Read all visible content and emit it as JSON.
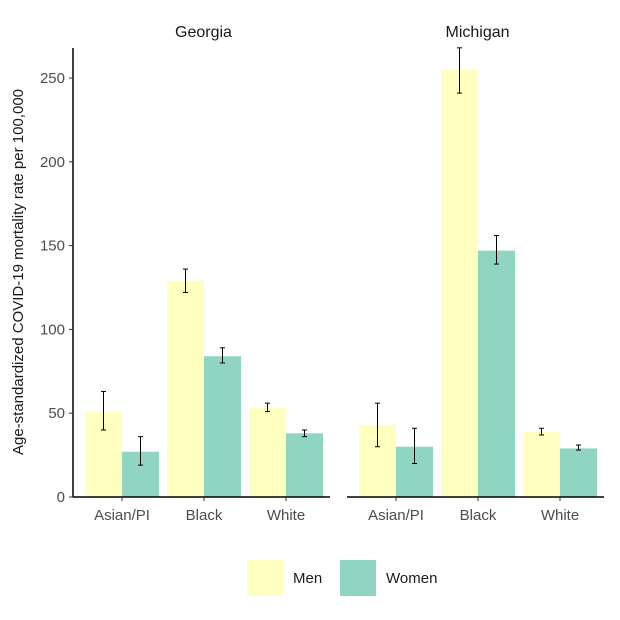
{
  "chart_data": {
    "type": "bar",
    "ylabel": "Age-standardized COVID-19 mortality rate per 100,000",
    "xlabel": "",
    "ylim": [
      0,
      270
    ],
    "yticks": [
      0,
      50,
      100,
      150,
      200,
      250
    ],
    "categories": [
      "Asian/PI",
      "Black",
      "White"
    ],
    "legend": {
      "position": "bottom",
      "entries": [
        "Men",
        "Women"
      ]
    },
    "colors": {
      "Men": "#ffffbf",
      "Women": "#8fd5c2",
      "error_bar": "#000000"
    },
    "grid": false,
    "facets": [
      {
        "title": "Georgia",
        "series": [
          {
            "name": "Men",
            "values": [
              51,
              129,
              53
            ],
            "err_low": [
              40,
              122,
              51
            ],
            "err_high": [
              63,
              136,
              56
            ]
          },
          {
            "name": "Women",
            "values": [
              27,
              84,
              38
            ],
            "err_low": [
              19,
              80,
              36
            ],
            "err_high": [
              36,
              89,
              40
            ]
          }
        ]
      },
      {
        "title": "Michigan",
        "series": [
          {
            "name": "Men",
            "values": [
              43,
              255,
              39
            ],
            "err_low": [
              30,
              241,
              37
            ],
            "err_high": [
              56,
              268,
              41
            ]
          },
          {
            "name": "Women",
            "values": [
              30,
              147,
              29
            ],
            "err_low": [
              20,
              139,
              28
            ],
            "err_high": [
              41,
              156,
              31
            ]
          }
        ]
      }
    ]
  }
}
